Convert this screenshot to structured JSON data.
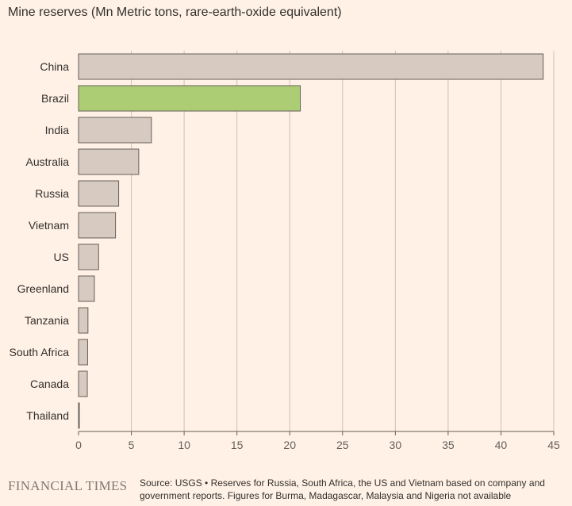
{
  "title": "Mine reserves (Mn Metric tons, rare-earth-oxide equivalent)",
  "chart_data": {
    "type": "bar",
    "orientation": "horizontal",
    "title": "Mine reserves (Mn Metric tons, rare-earth-oxide equivalent)",
    "categories": [
      "China",
      "Brazil",
      "India",
      "Australia",
      "Russia",
      "Vietnam",
      "US",
      "Greenland",
      "Tanzania",
      "South Africa",
      "Canada",
      "Thailand"
    ],
    "values": [
      44,
      21,
      6.9,
      5.7,
      3.8,
      3.5,
      1.9,
      1.5,
      0.89,
      0.86,
      0.83,
      0.0045
    ],
    "highlight": "Brazil",
    "bar_color": "#d7cac1",
    "highlight_color": "#adcd75",
    "bar_stroke": "#66605c",
    "xlim": [
      0,
      45
    ],
    "xticks": [
      0,
      5,
      10,
      15,
      20,
      25,
      30,
      35,
      40,
      45
    ],
    "grid": true
  },
  "footer": {
    "logo": "FINANCIAL TIMES",
    "source": "Source: USGS • Reserves for Russia, South Africa, the US and Vietnam based on company and government reports. Figures for Burma, Madagascar, Malaysia and Nigeria not available"
  }
}
